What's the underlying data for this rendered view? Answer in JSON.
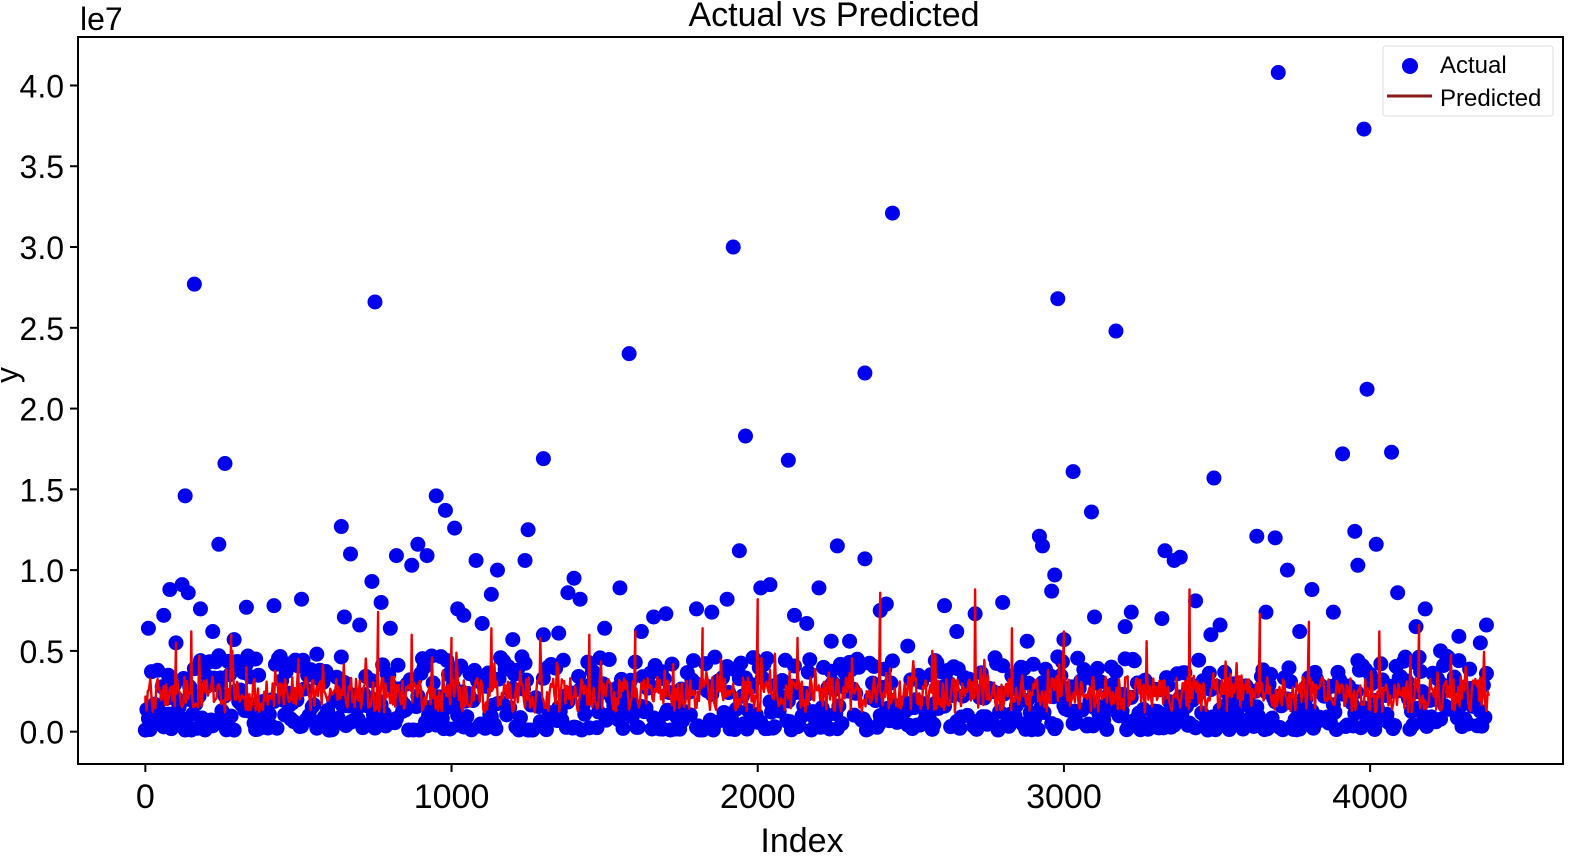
{
  "chart_data": {
    "type": "scatter",
    "title": "Actual vs Predicted",
    "xlabel": "Index",
    "ylabel": "y",
    "y_multiplier_label": "le7",
    "xlim": [
      -220,
      4630
    ],
    "ylim": [
      -0.2,
      4.3
    ],
    "x_ticks": [
      0,
      1000,
      2000,
      3000,
      4000
    ],
    "x_tick_labels": [
      "0",
      "1000",
      "2000",
      "3000",
      "4000"
    ],
    "y_ticks": [
      0.0,
      0.5,
      1.0,
      1.5,
      2.0,
      2.5,
      3.0,
      3.5,
      4.0
    ],
    "y_tick_labels": [
      "0.0",
      "0.5",
      "1.0",
      "1.5",
      "2.0",
      "2.5",
      "3.0",
      "3.5",
      "4.0"
    ],
    "grid": false,
    "legend_position": "top-right",
    "series": [
      {
        "name": "Actual",
        "kind": "scatter",
        "color": "#0000ee",
        "points": [
          [
            10,
            0.64
          ],
          [
            40,
            0.38
          ],
          [
            60,
            0.72
          ],
          [
            80,
            0.88
          ],
          [
            100,
            0.55
          ],
          [
            120,
            0.91
          ],
          [
            130,
            1.46
          ],
          [
            140,
            0.86
          ],
          [
            160,
            2.77
          ],
          [
            180,
            0.76
          ],
          [
            220,
            0.62
          ],
          [
            240,
            1.16
          ],
          [
            260,
            1.66
          ],
          [
            290,
            0.57
          ],
          [
            330,
            0.77
          ],
          [
            360,
            0.45
          ],
          [
            420,
            0.78
          ],
          [
            470,
            0.42
          ],
          [
            510,
            0.82
          ],
          [
            560,
            0.48
          ],
          [
            640,
            1.27
          ],
          [
            650,
            0.71
          ],
          [
            670,
            1.1
          ],
          [
            700,
            0.66
          ],
          [
            740,
            0.93
          ],
          [
            750,
            2.66
          ],
          [
            770,
            0.8
          ],
          [
            800,
            0.64
          ],
          [
            820,
            1.09
          ],
          [
            870,
            1.03
          ],
          [
            890,
            1.16
          ],
          [
            920,
            1.09
          ],
          [
            950,
            1.46
          ],
          [
            980,
            1.37
          ],
          [
            1010,
            1.26
          ],
          [
            1020,
            0.76
          ],
          [
            1040,
            0.72
          ],
          [
            1080,
            1.06
          ],
          [
            1100,
            0.67
          ],
          [
            1130,
            0.85
          ],
          [
            1150,
            1.0
          ],
          [
            1200,
            0.57
          ],
          [
            1240,
            1.06
          ],
          [
            1250,
            1.25
          ],
          [
            1300,
            0.6
          ],
          [
            1300,
            1.69
          ],
          [
            1350,
            0.61
          ],
          [
            1380,
            0.86
          ],
          [
            1400,
            0.95
          ],
          [
            1420,
            0.82
          ],
          [
            1500,
            0.64
          ],
          [
            1550,
            0.89
          ],
          [
            1580,
            2.34
          ],
          [
            1620,
            0.62
          ],
          [
            1660,
            0.71
          ],
          [
            1700,
            0.73
          ],
          [
            1800,
            0.76
          ],
          [
            1850,
            0.74
          ],
          [
            1900,
            0.82
          ],
          [
            1920,
            3.0
          ],
          [
            1940,
            1.12
          ],
          [
            1960,
            1.83
          ],
          [
            2010,
            0.89
          ],
          [
            2040,
            0.91
          ],
          [
            2100,
            1.68
          ],
          [
            2120,
            0.72
          ],
          [
            2160,
            0.67
          ],
          [
            2200,
            0.89
          ],
          [
            2240,
            0.56
          ],
          [
            2260,
            1.15
          ],
          [
            2300,
            0.56
          ],
          [
            2350,
            2.22
          ],
          [
            2350,
            1.07
          ],
          [
            2400,
            0.75
          ],
          [
            2420,
            0.79
          ],
          [
            2440,
            3.21
          ],
          [
            2490,
            0.53
          ],
          [
            2580,
            0.44
          ],
          [
            2610,
            0.78
          ],
          [
            2650,
            0.62
          ],
          [
            2710,
            0.73
          ],
          [
            2800,
            0.8
          ],
          [
            2880,
            0.56
          ],
          [
            2920,
            1.21
          ],
          [
            2930,
            1.15
          ],
          [
            2960,
            0.87
          ],
          [
            2970,
            0.97
          ],
          [
            2980,
            2.68
          ],
          [
            3000,
            0.57
          ],
          [
            3030,
            1.61
          ],
          [
            3090,
            1.36
          ],
          [
            3100,
            0.71
          ],
          [
            3170,
            2.48
          ],
          [
            3200,
            0.65
          ],
          [
            3220,
            0.74
          ],
          [
            3320,
            0.7
          ],
          [
            3330,
            1.12
          ],
          [
            3360,
            1.06
          ],
          [
            3380,
            1.08
          ],
          [
            3430,
            0.81
          ],
          [
            3480,
            0.6
          ],
          [
            3490,
            1.57
          ],
          [
            3510,
            0.66
          ],
          [
            3630,
            1.21
          ],
          [
            3660,
            0.74
          ],
          [
            3690,
            1.2
          ],
          [
            3700,
            4.08
          ],
          [
            3730,
            1.0
          ],
          [
            3770,
            0.62
          ],
          [
            3810,
            0.88
          ],
          [
            3880,
            0.74
          ],
          [
            3910,
            1.72
          ],
          [
            3950,
            1.24
          ],
          [
            3960,
            1.03
          ],
          [
            3980,
            3.73
          ],
          [
            3990,
            2.12
          ],
          [
            4020,
            1.16
          ],
          [
            4070,
            1.73
          ],
          [
            4090,
            0.86
          ],
          [
            4150,
            0.65
          ],
          [
            4180,
            0.76
          ],
          [
            4230,
            0.5
          ],
          [
            4290,
            0.59
          ],
          [
            4360,
            0.55
          ],
          [
            4380,
            0.66
          ]
        ]
      },
      {
        "name": "Predicted",
        "kind": "line",
        "color": "#ee0000",
        "legend_color": "#8b1a1a",
        "points": [
          [
            0,
            0.18
          ],
          [
            100,
            0.55
          ],
          [
            150,
            0.62
          ],
          [
            280,
            0.6
          ],
          [
            330,
            0.4
          ],
          [
            500,
            0.45
          ],
          [
            760,
            0.74
          ],
          [
            870,
            0.6
          ],
          [
            1000,
            0.58
          ],
          [
            1130,
            0.64
          ],
          [
            1290,
            0.58
          ],
          [
            1450,
            0.6
          ],
          [
            1600,
            0.62
          ],
          [
            1820,
            0.64
          ],
          [
            2000,
            0.82
          ],
          [
            2130,
            0.58
          ],
          [
            2400,
            0.86
          ],
          [
            2570,
            0.5
          ],
          [
            2710,
            0.88
          ],
          [
            2830,
            0.64
          ],
          [
            3000,
            0.62
          ],
          [
            3270,
            0.56
          ],
          [
            3410,
            0.88
          ],
          [
            3640,
            0.73
          ],
          [
            3800,
            0.68
          ],
          [
            4030,
            0.62
          ],
          [
            4160,
            0.66
          ],
          [
            4390,
            0.55
          ]
        ]
      }
    ]
  }
}
